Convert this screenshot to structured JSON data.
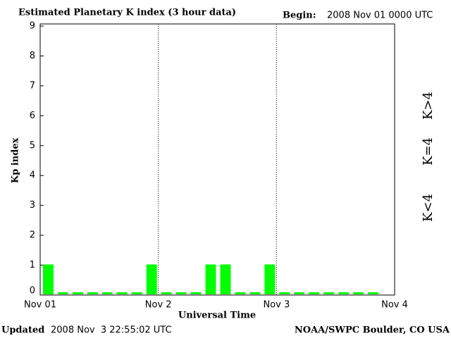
{
  "chart_data": {
    "type": "bar",
    "title": "Estimated Planetary K index (3 hour data)",
    "begin_label": "Begin:",
    "begin": "2008 Nov 01 0000 UTC",
    "y_label": "Kp index",
    "x_label": "Universal Time",
    "updated_label": "Updated",
    "updated": "2008 Nov  3 22:55:02 UTC",
    "source": "NOAA/SWPC Boulder, CO USA",
    "x": [
      0,
      3,
      6,
      9,
      12,
      15,
      18,
      21,
      24,
      27,
      30,
      33,
      36,
      39,
      42,
      45,
      48,
      51,
      54,
      57,
      60,
      63,
      66,
      69
    ],
    "values": [
      1,
      0,
      0,
      0,
      0,
      0,
      0,
      1,
      0,
      0,
      0,
      1,
      1,
      0,
      0,
      1,
      0,
      0,
      0,
      0,
      0,
      0,
      0,
      null
    ],
    "color": "#00ff00",
    "xlim": [
      0,
      72
    ],
    "xticks": [
      {
        "value": 0,
        "label": "Nov 01"
      },
      {
        "value": 24,
        "label": "Nov 2"
      },
      {
        "value": 48,
        "label": "Nov 3"
      },
      {
        "value": 72,
        "label": "Nov 4"
      }
    ],
    "ylim": [
      0,
      9
    ],
    "yticks": [
      0,
      1,
      2,
      3,
      4,
      5,
      6,
      7,
      8,
      9
    ],
    "legend": [
      {
        "label": "K<4",
        "color": "#00ff00"
      },
      {
        "label": "K=4",
        "color": "#ffd700"
      },
      {
        "label": "K>4",
        "color": "#ff2000"
      }
    ]
  }
}
